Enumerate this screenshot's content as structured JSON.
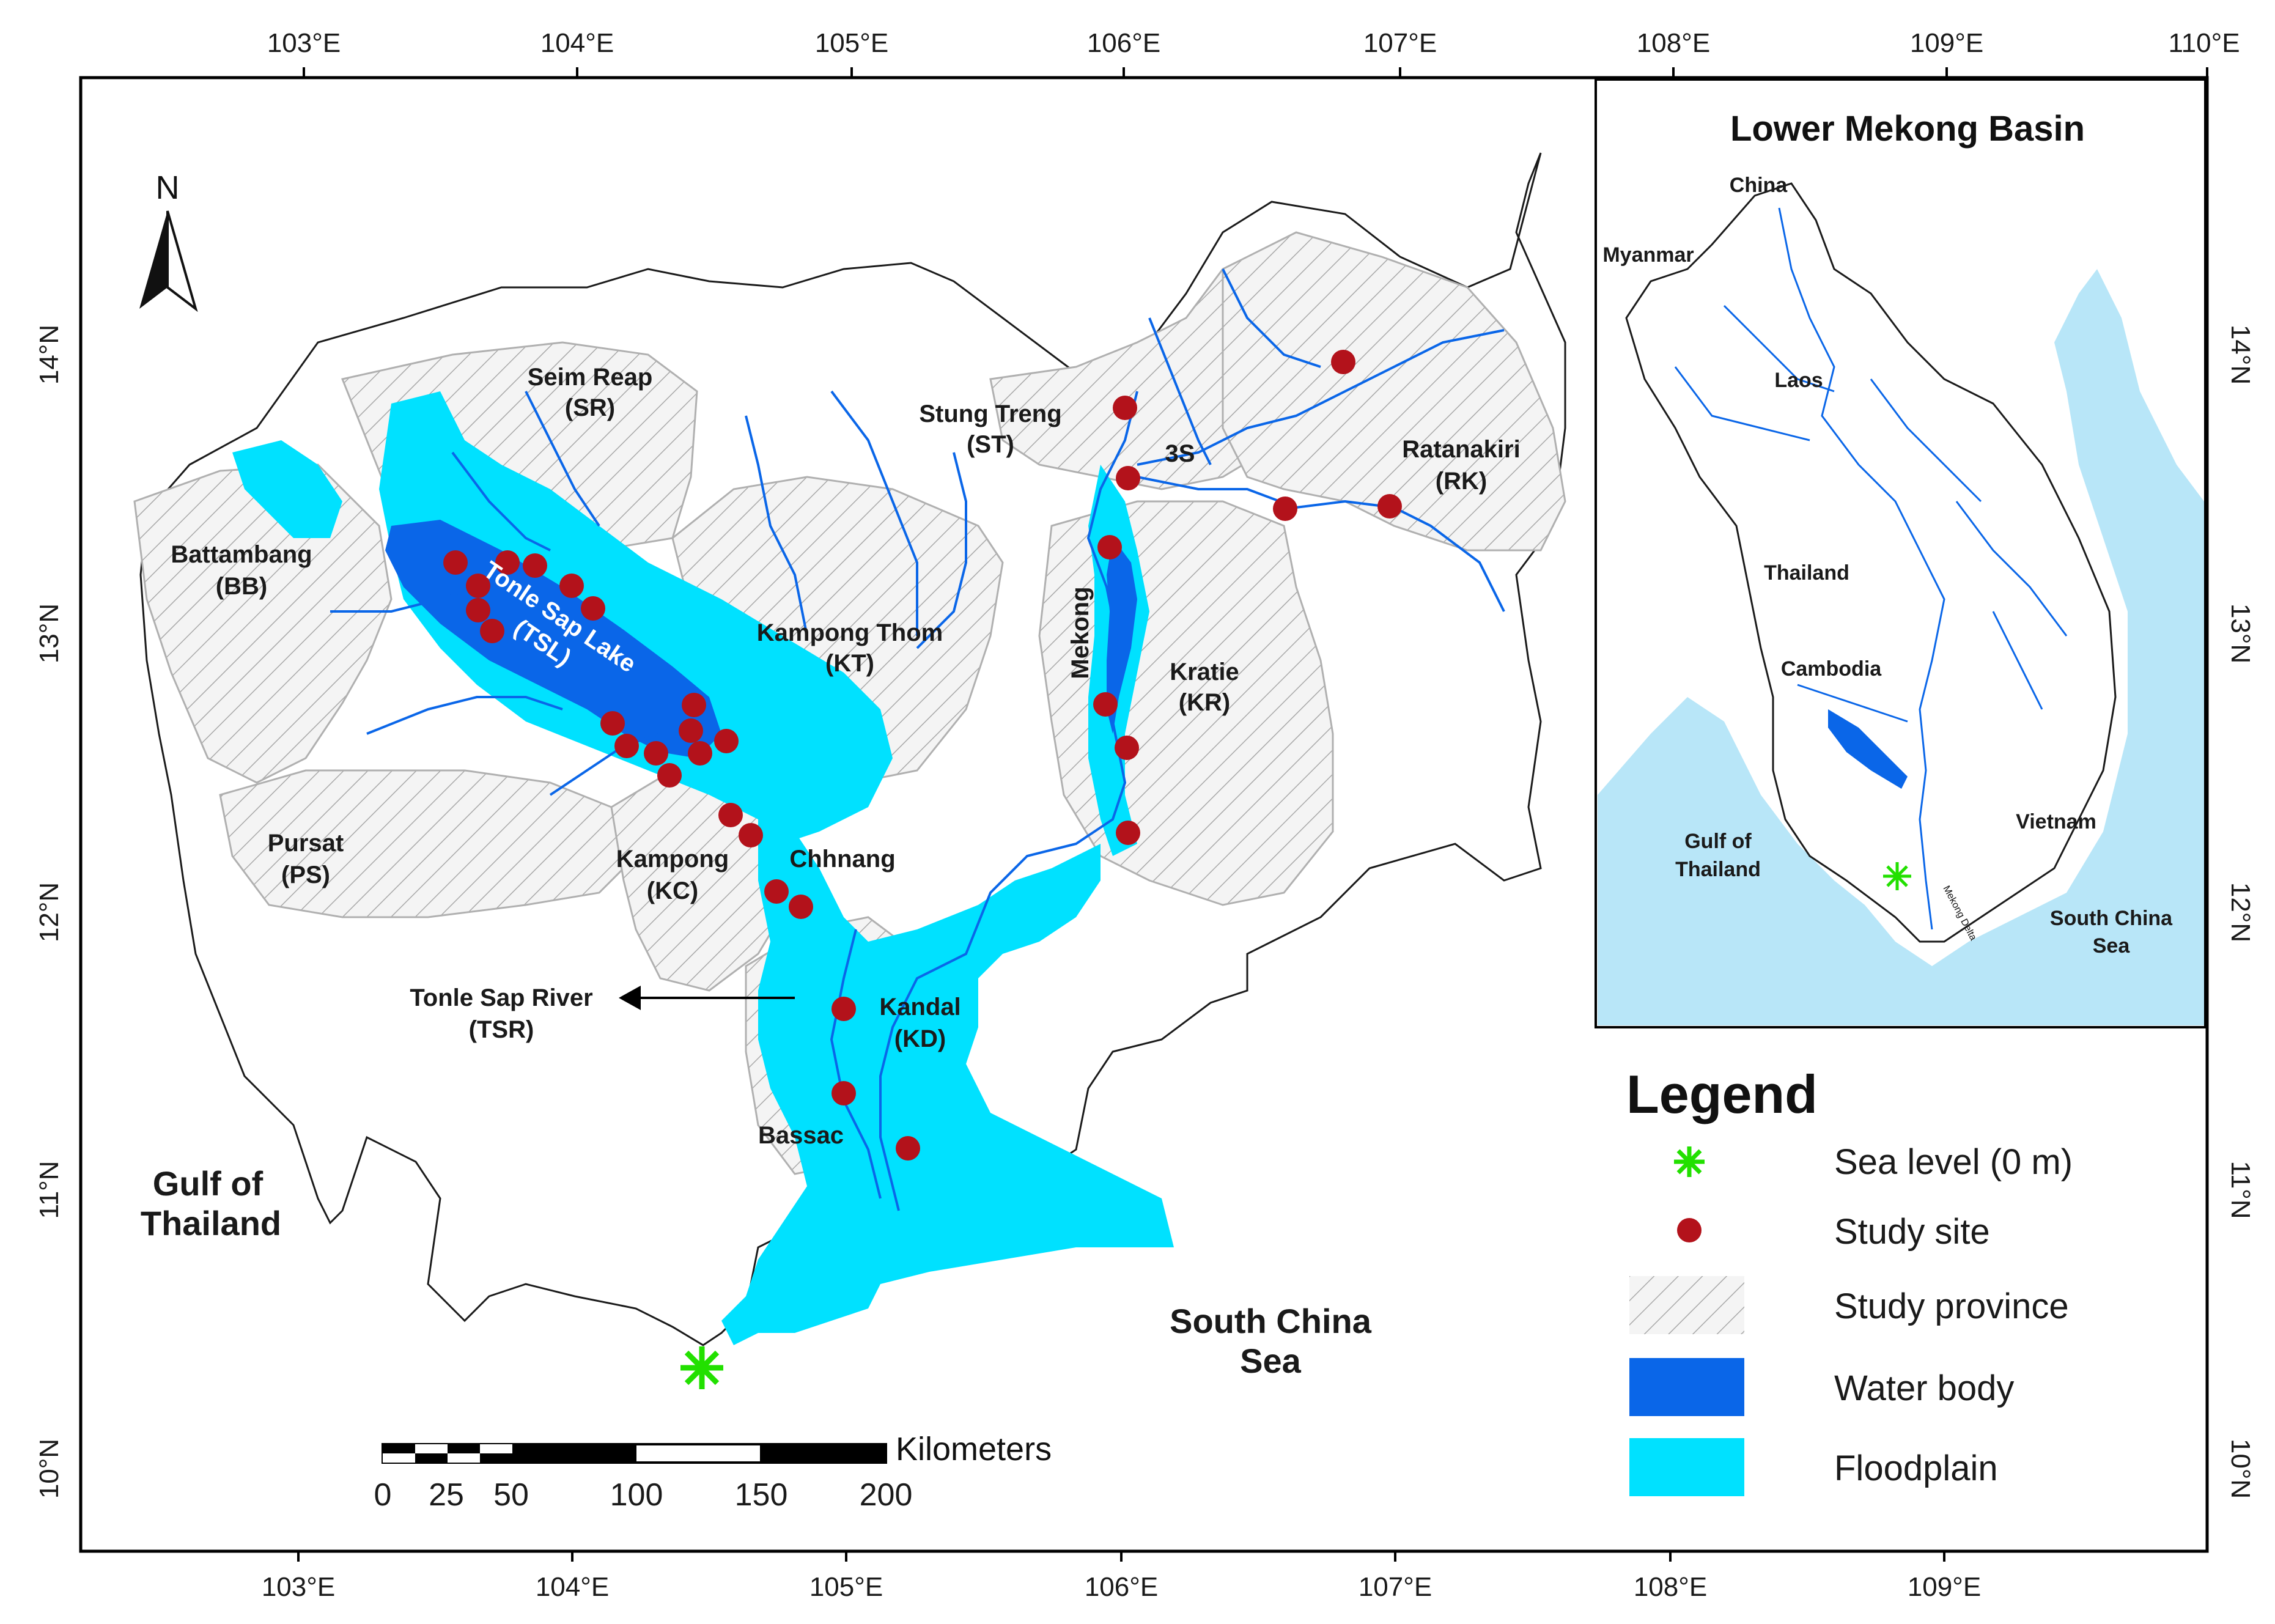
{
  "map": {
    "lon_ticks": [
      "103°E",
      "104°E",
      "105°E",
      "106°E",
      "107°E",
      "108°E",
      "109°E",
      "110°E"
    ],
    "lat_ticks": [
      "14°N",
      "13°N",
      "12°N",
      "11°N",
      "10°N"
    ],
    "north_arrow": "N",
    "labels": {
      "seim_reap": "Seim Reap",
      "seim_reap_code": "(SR)",
      "battambang": "Battambang",
      "battambang_code": "(BB)",
      "stung_treng": "Stung Treng",
      "stung_treng_code": "(ST)",
      "three_s": "3S",
      "ratanakiri": "Ratanakiri",
      "ratanakiri_code": "(RK)",
      "kampong_thom": "Kampong Thom",
      "kampong_thom_code": "(KT)",
      "mekong": "Mekong",
      "kratie": "Kratie",
      "kratie_code": "(KR)",
      "tonle_sap_lake": "Tonle Sap Lake",
      "tonle_sap_lake_code": "(TSL)",
      "pursat": "Pursat",
      "pursat_code": "(PS)",
      "kampong": "Kampong",
      "kampong_code": "(KC)",
      "chhnang": "Chhnang",
      "tonle_sap_river": "Tonle Sap River",
      "tonle_sap_river_code": "(TSR)",
      "kandal": "Kandal",
      "kandal_code": "(KD)",
      "bassac": "Bassac",
      "gulf_1": "Gulf of",
      "gulf_2": "Thailand",
      "scs_1": "South China",
      "scs_2": "Sea"
    },
    "scale_bar": {
      "unit": "Kilometers",
      "ticks": [
        "0",
        "25",
        "50",
        "100",
        "150",
        "200"
      ]
    }
  },
  "inset": {
    "title": "Lower Mekong Basin",
    "labels": {
      "china": "China",
      "myanmar": "Myanmar",
      "laos": "Laos",
      "thailand": "Thailand",
      "cambodia": "Cambodia",
      "vietnam": "Vietnam",
      "gulf_1": "Gulf of",
      "gulf_2": "Thailand",
      "scs_1": "South China",
      "scs_2": "Sea",
      "mekong_delta": "Mekong Delta"
    }
  },
  "legend": {
    "title": "Legend",
    "items": [
      {
        "label": "Sea level (0 m)",
        "icon": "green-star-icon"
      },
      {
        "label": "Study site",
        "icon": "red-dot-icon"
      },
      {
        "label": "Study province",
        "icon": "hatch-swatch"
      },
      {
        "label": "Water body",
        "icon": "blue-swatch"
      },
      {
        "label": "Floodplain",
        "icon": "cyan-swatch"
      }
    ]
  },
  "colors": {
    "water_body": "#0a66e8",
    "floodplain": "#00e1ff",
    "study_site": "#b3121b",
    "sea_level": "#22e000",
    "sea": "#b8e6f8",
    "hatch": "#9a9a9a"
  }
}
